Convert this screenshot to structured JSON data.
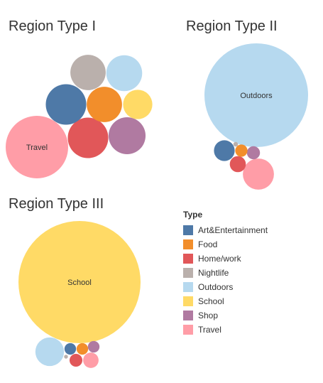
{
  "chart_data": {
    "type": "bubble",
    "legend": {
      "title": "Type",
      "placement": "right",
      "items": [
        {
          "label": "Art&Entertainment",
          "color": "#4e79a7"
        },
        {
          "label": "Food",
          "color": "#f28e2b"
        },
        {
          "label": "Home/work",
          "color": "#e15759"
        },
        {
          "label": "Nightlife",
          "color": "#bab0ac"
        },
        {
          "label": "Outdoors",
          "color": "#b6d9ef"
        },
        {
          "label": "School",
          "color": "#ffda66"
        },
        {
          "label": "Shop",
          "color": "#b07aa1"
        },
        {
          "label": "Travel",
          "color": "#ff9da7"
        }
      ]
    },
    "panels": [
      {
        "title": "Region Type I",
        "bubbles": [
          {
            "type": "Travel",
            "relative_size": 1.0,
            "label": "Travel"
          },
          {
            "type": "Home/work",
            "relative_size": 0.42
          },
          {
            "type": "Shop",
            "relative_size": 0.35
          },
          {
            "type": "Art&Entertainment",
            "relative_size": 0.42
          },
          {
            "type": "Food",
            "relative_size": 0.32
          },
          {
            "type": "Nightlife",
            "relative_size": 0.32
          },
          {
            "type": "Outdoors",
            "relative_size": 0.33
          },
          {
            "type": "School",
            "relative_size": 0.22
          }
        ]
      },
      {
        "title": "Region Type II",
        "bubbles": [
          {
            "type": "Outdoors",
            "relative_size": 1.0,
            "label": "Outdoors"
          },
          {
            "type": "Travel",
            "relative_size": 0.09
          },
          {
            "type": "Art&Entertainment",
            "relative_size": 0.04
          },
          {
            "type": "Home/work",
            "relative_size": 0.024
          },
          {
            "type": "Shop",
            "relative_size": 0.016
          },
          {
            "type": "Food",
            "relative_size": 0.014
          },
          {
            "type": "Nightlife",
            "relative_size": 0.002
          }
        ]
      },
      {
        "title": "Region Type III",
        "bubbles": [
          {
            "type": "School",
            "relative_size": 1.0,
            "label": "School"
          },
          {
            "type": "Outdoors",
            "relative_size": 0.055
          },
          {
            "type": "Travel",
            "relative_size": 0.016
          },
          {
            "type": "Home/work",
            "relative_size": 0.011
          },
          {
            "type": "Food",
            "relative_size": 0.009
          },
          {
            "type": "Art&Entertainment",
            "relative_size": 0.009
          },
          {
            "type": "Shop",
            "relative_size": 0.009
          },
          {
            "type": "Nightlife",
            "relative_size": 0.001
          }
        ]
      }
    ]
  }
}
